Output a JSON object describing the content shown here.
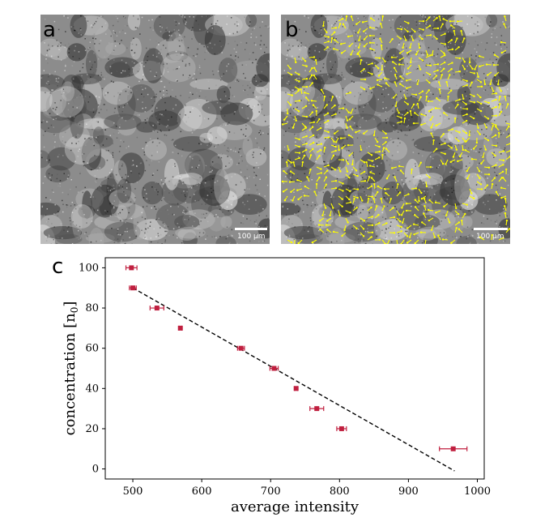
{
  "panels": [
    {
      "letter": "a",
      "scalebar": "100 µm",
      "quiver_color": ""
    },
    {
      "letter": "b",
      "scalebar": "100 µm",
      "quiver_color": "#ffff00"
    }
  ],
  "chart_letter": "c",
  "chart_data": {
    "type": "scatter",
    "xlabel": "average intensity",
    "ylabel": "concentration [n",
    "ylabel_sub": "0",
    "ylabel_close": "]",
    "xlim": [
      460,
      1010
    ],
    "ylim": [
      -5,
      105
    ],
    "xticks": [
      500,
      600,
      700,
      800,
      900,
      1000
    ],
    "yticks": [
      0,
      20,
      40,
      60,
      80,
      100
    ],
    "grid": false,
    "marker_color": "#c01f3f",
    "fit_color": "#000000",
    "points": [
      {
        "x": 498,
        "y": 100,
        "xerr": 8
      },
      {
        "x": 500,
        "y": 90,
        "xerr": 5
      },
      {
        "x": 535,
        "y": 80,
        "xerr": 10
      },
      {
        "x": 569,
        "y": 70,
        "xerr": 2
      },
      {
        "x": 657,
        "y": 60,
        "xerr": 5
      },
      {
        "x": 705,
        "y": 50,
        "xerr": 6
      },
      {
        "x": 737,
        "y": 40,
        "xerr": 2
      },
      {
        "x": 767,
        "y": 30,
        "xerr": 10
      },
      {
        "x": 803,
        "y": 20,
        "xerr": 7
      },
      {
        "x": 965,
        "y": 10,
        "xerr": 20
      }
    ],
    "fit_line": [
      {
        "x": 500,
        "y": 90
      },
      {
        "x": 967,
        "y": -1
      }
    ]
  }
}
